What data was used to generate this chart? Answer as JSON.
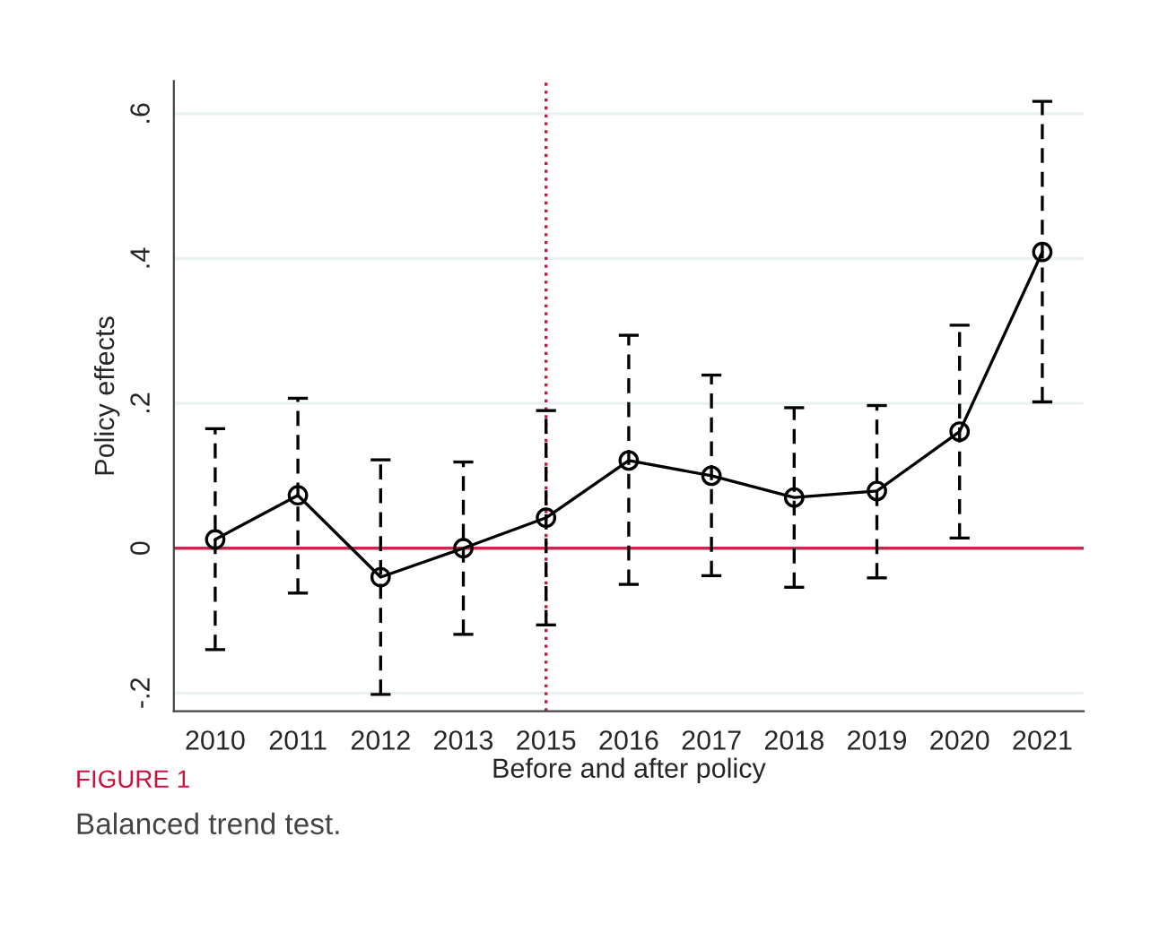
{
  "chart_data": {
    "type": "line",
    "xlabel": "Before and after policy",
    "ylabel": "Policy effects",
    "categories": [
      "2010",
      "2011",
      "2012",
      "2013",
      "2015",
      "2016",
      "2017",
      "2018",
      "2019",
      "2020",
      "2021"
    ],
    "series": [
      {
        "color": "#000000",
        "values": [
          0.012,
          0.073,
          -0.04,
          0.0,
          0.042,
          0.121,
          0.1,
          0.07,
          0.079,
          0.161,
          0.409
        ],
        "errors": [
          [
            -0.14,
            0.165
          ],
          [
            -0.062,
            0.207
          ],
          [
            -0.202,
            0.122
          ],
          [
            -0.119,
            0.119
          ],
          [
            -0.106,
            0.19
          ],
          [
            -0.05,
            0.294
          ],
          [
            -0.038,
            0.239
          ],
          [
            -0.054,
            0.194
          ],
          [
            -0.041,
            0.197
          ],
          [
            0.014,
            0.308
          ],
          [
            0.202,
            0.617
          ]
        ]
      }
    ],
    "ylim": [
      -0.225,
      0.645
    ],
    "yticks": [
      {
        "value": -0.2,
        "label": "-.2"
      },
      {
        "value": 0,
        "label": "0"
      },
      {
        "value": 0.2,
        "label": ".2"
      },
      {
        "value": 0.4,
        "label": ".4"
      },
      {
        "value": 0.6,
        "label": ".6"
      }
    ],
    "ref_lines": [
      {
        "axis": "y",
        "value": 0,
        "color": "#c8284f",
        "line_style": "solid"
      },
      {
        "axis": "x",
        "value": "2015",
        "color": "#d0103a",
        "line_style": "dotted"
      }
    ],
    "grid": "y",
    "marker": "circle",
    "line_style": "solid",
    "legend": false,
    "annotations": [
      "FIGURE 1",
      "Balanced trend test."
    ]
  }
}
